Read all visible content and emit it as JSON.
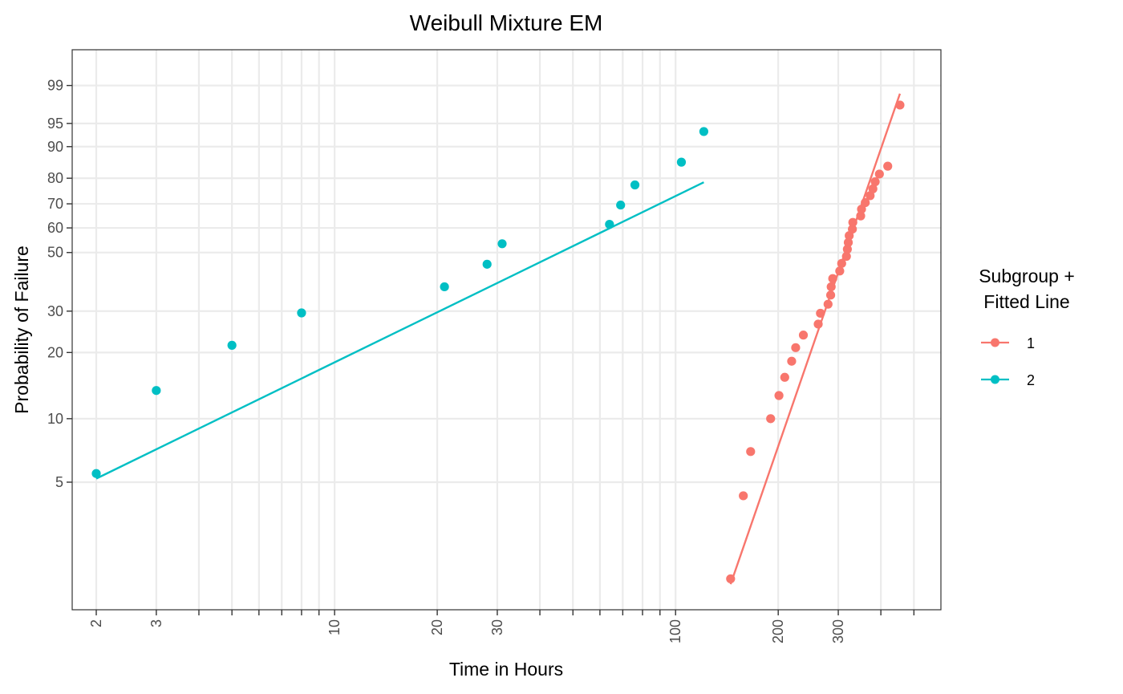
{
  "chart_data": {
    "type": "scatter",
    "title": "Weibull Mixture EM",
    "xlabel": "Time in Hours",
    "ylabel": "Probability of Failure",
    "x_scale": "log",
    "y_scale": "weibull-probability",
    "xlim": [
      1.7,
      600
    ],
    "ylim_percent": [
      1.2,
      99.9
    ],
    "x_ticks": [
      {
        "value": 2,
        "label": "2"
      },
      {
        "value": 3,
        "label": "3"
      },
      {
        "value": 10,
        "label": "10"
      },
      {
        "value": 20,
        "label": "20"
      },
      {
        "value": 30,
        "label": "30"
      },
      {
        "value": 100,
        "label": "100"
      },
      {
        "value": 200,
        "label": "200"
      },
      {
        "value": 300,
        "label": "300"
      }
    ],
    "x_minor_ticks": [
      4,
      5,
      6,
      7,
      8,
      9,
      40,
      50,
      60,
      70,
      80,
      90,
      400,
      500
    ],
    "y_ticks": [
      {
        "value": 5,
        "label": "5"
      },
      {
        "value": 10,
        "label": "10"
      },
      {
        "value": 20,
        "label": "20"
      },
      {
        "value": 30,
        "label": "30"
      },
      {
        "value": 50,
        "label": "50"
      },
      {
        "value": 60,
        "label": "60"
      },
      {
        "value": 70,
        "label": "70"
      },
      {
        "value": 80,
        "label": "80"
      },
      {
        "value": 90,
        "label": "90"
      },
      {
        "value": 95,
        "label": "95"
      },
      {
        "value": 99,
        "label": "99"
      }
    ],
    "grid": true,
    "legend": {
      "title_lines": [
        "Subgroup +",
        "Fitted Line"
      ],
      "placement": "right",
      "entries": [
        "1",
        "2"
      ]
    },
    "series": [
      {
        "name": "1",
        "color": "#F8766D",
        "points": [
          {
            "x": 145,
            "y": 1.7
          },
          {
            "x": 158,
            "y": 4.3
          },
          {
            "x": 166,
            "y": 7.0
          },
          {
            "x": 190,
            "y": 10.0
          },
          {
            "x": 201,
            "y": 12.8
          },
          {
            "x": 209,
            "y": 15.5
          },
          {
            "x": 219,
            "y": 18.3
          },
          {
            "x": 225,
            "y": 21.0
          },
          {
            "x": 237,
            "y": 23.8
          },
          {
            "x": 262,
            "y": 26.5
          },
          {
            "x": 266,
            "y": 29.4
          },
          {
            "x": 280,
            "y": 32.0
          },
          {
            "x": 285,
            "y": 34.8
          },
          {
            "x": 286,
            "y": 37.5
          },
          {
            "x": 289,
            "y": 40.3
          },
          {
            "x": 303,
            "y": 43.0
          },
          {
            "x": 307,
            "y": 45.8
          },
          {
            "x": 317,
            "y": 48.5
          },
          {
            "x": 319,
            "y": 51.3
          },
          {
            "x": 321,
            "y": 54.0
          },
          {
            "x": 323,
            "y": 56.8
          },
          {
            "x": 330,
            "y": 59.5
          },
          {
            "x": 331,
            "y": 62.3
          },
          {
            "x": 349,
            "y": 65.0
          },
          {
            "x": 351,
            "y": 67.8
          },
          {
            "x": 360,
            "y": 70.5
          },
          {
            "x": 372,
            "y": 73.3
          },
          {
            "x": 379,
            "y": 76.0
          },
          {
            "x": 385,
            "y": 78.7
          },
          {
            "x": 396,
            "y": 81.5
          },
          {
            "x": 419,
            "y": 84.2
          },
          {
            "x": 455,
            "y": 97.5
          }
        ],
        "fit": {
          "x": [
            145,
            455
          ],
          "y": [
            1.6,
            98.5
          ]
        }
      },
      {
        "name": "2",
        "color": "#00BFC4",
        "points": [
          {
            "x": 2,
            "y": 5.5
          },
          {
            "x": 3,
            "y": 13.5
          },
          {
            "x": 5,
            "y": 21.5
          },
          {
            "x": 8,
            "y": 29.5
          },
          {
            "x": 21,
            "y": 37.5
          },
          {
            "x": 28,
            "y": 45.5
          },
          {
            "x": 31,
            "y": 53.5
          },
          {
            "x": 64,
            "y": 61.5
          },
          {
            "x": 69,
            "y": 69.5
          },
          {
            "x": 76,
            "y": 77.5
          },
          {
            "x": 104,
            "y": 85.5
          },
          {
            "x": 121,
            "y": 93.5
          }
        ],
        "fit": {
          "x": [
            2,
            121
          ],
          "y": [
            5.2,
            78.5
          ]
        }
      }
    ]
  }
}
